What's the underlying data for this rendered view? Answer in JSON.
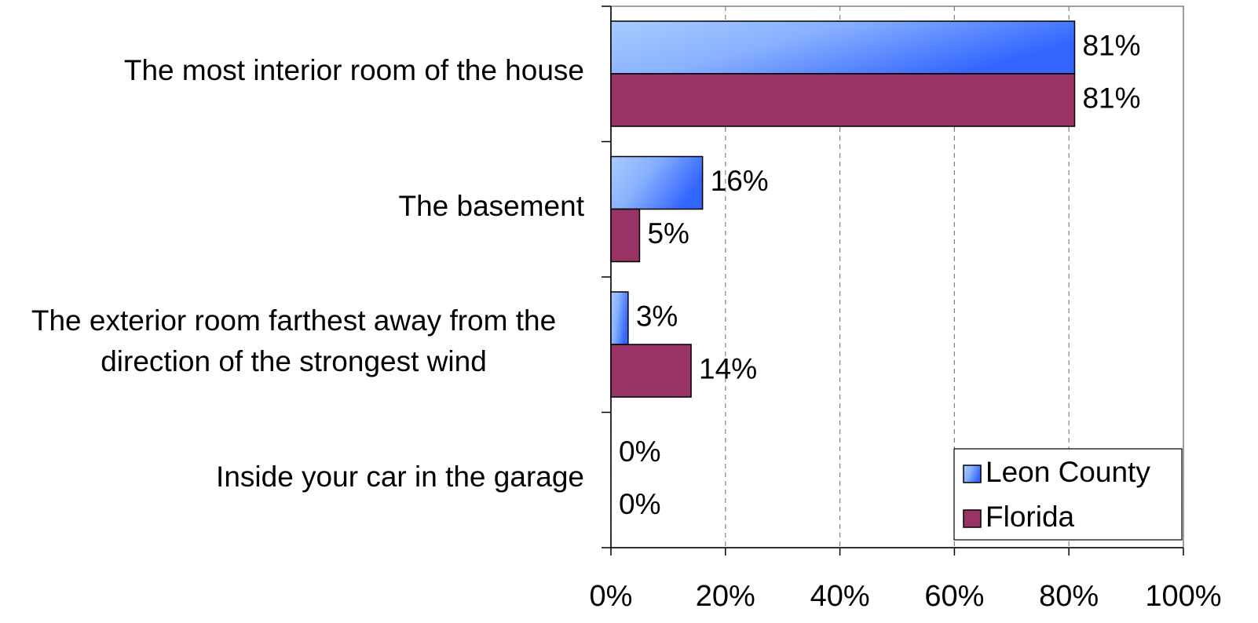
{
  "chart_data": {
    "type": "bar",
    "orientation": "horizontal",
    "categories": [
      "The most interior room of the house",
      "The basement",
      "The exterior room farthest away from the direction of the strongest wind",
      "Inside your car in the garage"
    ],
    "series": [
      {
        "name": "Leon County",
        "color": "#3366ff",
        "values": [
          81,
          16,
          3,
          0
        ],
        "value_labels": [
          "81%",
          "16%",
          "3%",
          "0%"
        ]
      },
      {
        "name": "Florida",
        "color": "#993366",
        "values": [
          81,
          5,
          14,
          0
        ],
        "value_labels": [
          "81%",
          "5%",
          "14%",
          "0%"
        ]
      }
    ],
    "xlim": [
      0,
      100
    ],
    "xticks": [
      {
        "value": 0,
        "label": "0%"
      },
      {
        "value": 20,
        "label": "20%"
      },
      {
        "value": 40,
        "label": "40%"
      },
      {
        "value": 60,
        "label": "60%"
      },
      {
        "value": 80,
        "label": "80%"
      },
      {
        "value": 100,
        "label": "100%"
      }
    ],
    "grid": true,
    "legend": "lower right"
  }
}
